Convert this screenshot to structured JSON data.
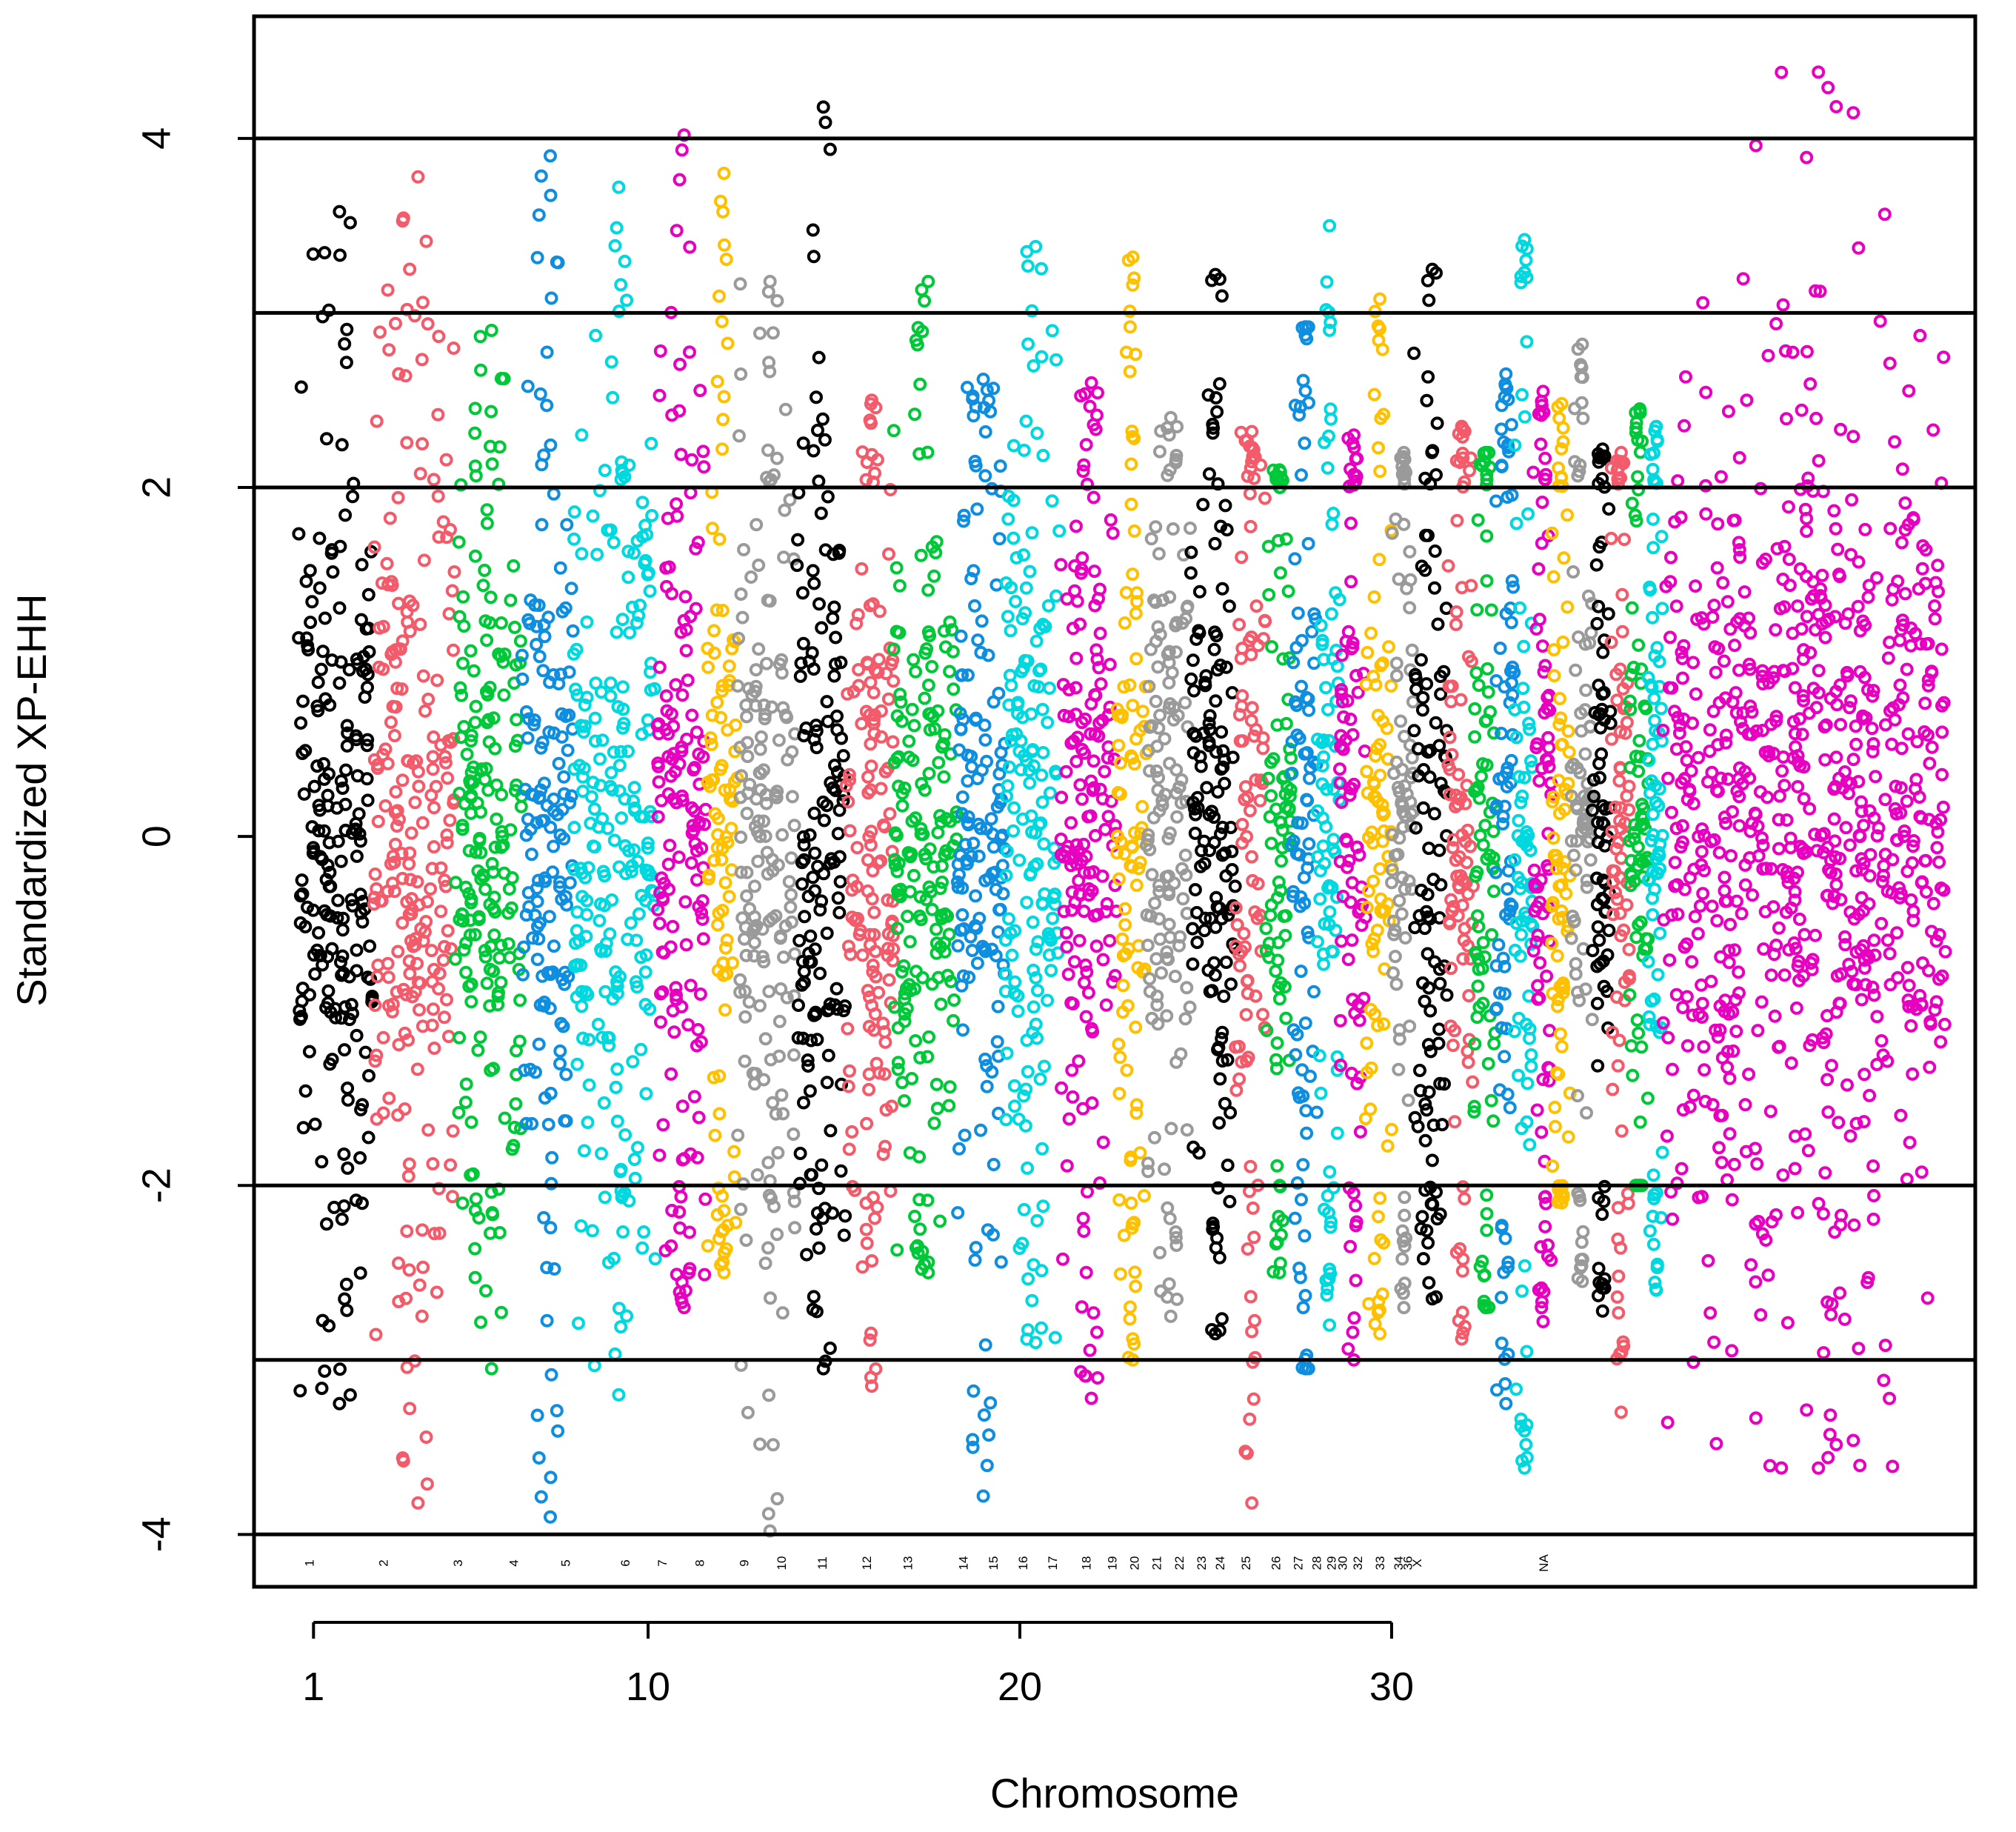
{
  "chart_data": {
    "type": "scatter",
    "title": "",
    "xlabel": "Chromosome",
    "ylabel": "Standardized XP-EHH",
    "ylim": [
      -4.3,
      4.7
    ],
    "xlim": [
      -0.6,
      45.7
    ],
    "grid": false,
    "legend": "none",
    "marker": "open-circle",
    "x_ticks": [
      {
        "value": 1,
        "label": "1"
      },
      {
        "value": 10,
        "label": "10"
      },
      {
        "value": 20,
        "label": "20"
      },
      {
        "value": 30,
        "label": "30"
      }
    ],
    "y_ticks": [
      {
        "value": 4,
        "label": "4"
      },
      {
        "value": 2,
        "label": "2"
      },
      {
        "value": 0,
        "label": "0"
      },
      {
        "value": -2,
        "label": "-2"
      },
      {
        "value": -4,
        "label": "-4"
      }
    ],
    "reference_lines_y": [
      4,
      3,
      2,
      -2,
      -3,
      -4
    ],
    "palette": {
      "black": "#000000",
      "salmon": "#f35a6a",
      "green": "#00c838",
      "blue": "#0f8ee0",
      "cyan": "#00d8e0",
      "magenta": "#e800c0",
      "yellow": "#ffc000",
      "gray": "#9a9a9a"
    },
    "chromosomes": [
      {
        "label": "1",
        "x_start": 0.6,
        "x_end": 2.6,
        "color": "black",
        "ymin": -3.25,
        "ymax": 3.58
      },
      {
        "label": "2",
        "x_start": 2.6,
        "x_end": 4.8,
        "color": "salmon",
        "ymin": -3.82,
        "ymax": 3.78
      },
      {
        "label": "3",
        "x_start": 4.8,
        "x_end": 6.6,
        "color": "green",
        "ymin": -3.05,
        "ymax": 2.9
      },
      {
        "label": "4",
        "x_start": 6.6,
        "x_end": 8.0,
        "color": "blue",
        "ymin": -3.9,
        "ymax": 3.9
      },
      {
        "label": "5",
        "x_start": 8.0,
        "x_end": 10.2,
        "color": "cyan",
        "ymin": -3.2,
        "ymax": 3.72
      },
      {
        "label": "6",
        "x_start": 10.2,
        "x_end": 11.6,
        "color": "magenta",
        "ymin": -2.7,
        "ymax": 4.02
      },
      {
        "label": "7",
        "x_start": 11.6,
        "x_end": 12.4,
        "color": "yellow",
        "ymin": -2.5,
        "ymax": 3.8
      },
      {
        "label": "8",
        "x_start": 12.4,
        "x_end": 14.0,
        "color": "gray",
        "ymin": -3.98,
        "ymax": 3.18
      },
      {
        "label": "9",
        "x_start": 14.0,
        "x_end": 15.3,
        "color": "black",
        "ymin": -3.05,
        "ymax": 4.18
      },
      {
        "label": "10",
        "x_start": 15.3,
        "x_end": 16.6,
        "color": "salmon",
        "ymin": -3.15,
        "ymax": 2.5
      },
      {
        "label": "11",
        "x_start": 16.6,
        "x_end": 18.3,
        "color": "green",
        "ymin": -2.5,
        "ymax": 3.18
      },
      {
        "label": "12",
        "x_start": 18.3,
        "x_end": 19.6,
        "color": "blue",
        "ymin": -3.78,
        "ymax": 2.62
      },
      {
        "label": "13",
        "x_start": 19.6,
        "x_end": 21.1,
        "color": "cyan",
        "ymin": -2.9,
        "ymax": 3.38
      },
      {
        "label": "14",
        "x_start": 21.1,
        "x_end": 22.6,
        "color": "magenta",
        "ymin": -3.22,
        "ymax": 2.6
      },
      {
        "label": "15",
        "x_start": 22.6,
        "x_end": 23.4,
        "color": "yellow",
        "ymin": -3.0,
        "ymax": 3.32
      },
      {
        "label": "16",
        "x_start": 23.4,
        "x_end": 24.6,
        "color": "gray",
        "ymin": -2.75,
        "ymax": 2.4
      },
      {
        "label": "17",
        "x_start": 24.6,
        "x_end": 25.8,
        "color": "black",
        "ymin": -2.85,
        "ymax": 3.22
      },
      {
        "label": "18",
        "x_start": 25.8,
        "x_end": 26.6,
        "color": "salmon",
        "ymin": -3.82,
        "ymax": 2.32
      },
      {
        "label": "19",
        "x_start": 26.6,
        "x_end": 27.3,
        "color": "green",
        "ymin": -2.5,
        "ymax": 2.1
      },
      {
        "label": "20",
        "x_start": 27.3,
        "x_end": 28.0,
        "color": "blue",
        "ymin": -3.05,
        "ymax": 2.92
      },
      {
        "label": "21",
        "x_start": 28.0,
        "x_end": 28.6,
        "color": "cyan",
        "ymin": -2.8,
        "ymax": 3.5
      },
      {
        "label": "22",
        "x_start": 28.6,
        "x_end": 29.3,
        "color": "magenta",
        "ymin": -3.0,
        "ymax": 2.3
      },
      {
        "label": "23",
        "x_start": 29.3,
        "x_end": 30.0,
        "color": "yellow",
        "ymin": -2.85,
        "ymax": 3.08
      },
      {
        "label": "24",
        "x_start": 30.0,
        "x_end": 30.6,
        "color": "gray",
        "ymin": -2.7,
        "ymax": 2.2
      },
      {
        "label": "25",
        "x_start": 30.6,
        "x_end": 31.5,
        "color": "black",
        "ymin": -2.65,
        "ymax": 3.25
      },
      {
        "label": "26",
        "x_start": 31.5,
        "x_end": 32.2,
        "color": "salmon",
        "ymin": -2.88,
        "ymax": 2.35
      },
      {
        "label": "27",
        "x_start": 32.2,
        "x_end": 32.8,
        "color": "green",
        "ymin": -2.7,
        "ymax": 2.2
      },
      {
        "label": "28",
        "x_start": 32.8,
        "x_end": 33.3,
        "color": "blue",
        "ymin": -3.25,
        "ymax": 2.65
      },
      {
        "label": "29",
        "x_start": 33.3,
        "x_end": 33.8,
        "color": "cyan",
        "ymin": -3.62,
        "ymax": 3.42
      },
      {
        "label": "30",
        "x_start": 33.8,
        "x_end": 34.3,
        "color": "magenta",
        "ymin": -2.78,
        "ymax": 2.55
      },
      {
        "label": "32",
        "x_start": 34.3,
        "x_end": 34.8,
        "color": "yellow",
        "ymin": -2.1,
        "ymax": 2.48
      },
      {
        "label": "33",
        "x_start": 34.8,
        "x_end": 35.4,
        "color": "gray",
        "ymin": -2.55,
        "ymax": 2.82
      },
      {
        "label": "34",
        "x_start": 35.4,
        "x_end": 35.9,
        "color": "black",
        "ymin": -2.72,
        "ymax": 2.22
      },
      {
        "label": "36",
        "x_start": 35.9,
        "x_end": 36.4,
        "color": "salmon",
        "ymin": -3.3,
        "ymax": 2.2
      },
      {
        "label": "X",
        "x_start": 36.4,
        "x_end": 36.9,
        "color": "green",
        "ymin": -2.0,
        "ymax": 2.45
      },
      {
        "label": "",
        "x_start": 36.9,
        "x_end": 37.3,
        "color": "cyan",
        "ymin": -2.6,
        "ymax": 2.35
      },
      {
        "label": "NA",
        "x_start": 37.3,
        "x_end": 44.9,
        "color": "magenta",
        "ymin": -3.62,
        "ymax": 4.38
      }
    ],
    "chromosome_label_positions": [
      {
        "label": "1",
        "x": 1.0
      },
      {
        "label": "2",
        "x": 3.0
      },
      {
        "label": "3",
        "x": 5.0
      },
      {
        "label": "4",
        "x": 6.5
      },
      {
        "label": "5",
        "x": 7.9
      },
      {
        "label": "6",
        "x": 9.5
      },
      {
        "label": "7",
        "x": 10.5
      },
      {
        "label": "8",
        "x": 11.5
      },
      {
        "label": "9",
        "x": 12.7
      },
      {
        "label": "10",
        "x": 13.7
      },
      {
        "label": "11",
        "x": 14.8
      },
      {
        "label": "12",
        "x": 16.0
      },
      {
        "label": "13",
        "x": 17.1
      },
      {
        "label": "14",
        "x": 18.6
      },
      {
        "label": "15",
        "x": 19.4
      },
      {
        "label": "16",
        "x": 20.2
      },
      {
        "label": "17",
        "x": 21.0
      },
      {
        "label": "18",
        "x": 21.9
      },
      {
        "label": "19",
        "x": 22.6
      },
      {
        "label": "20",
        "x": 23.2
      },
      {
        "label": "21",
        "x": 23.8
      },
      {
        "label": "22",
        "x": 24.4
      },
      {
        "label": "23",
        "x": 25.0
      },
      {
        "label": "24",
        "x": 25.5
      },
      {
        "label": "25",
        "x": 26.2
      },
      {
        "label": "26",
        "x": 27.0
      },
      {
        "label": "27",
        "x": 27.6
      },
      {
        "label": "28",
        "x": 28.1
      },
      {
        "label": "29",
        "x": 28.5
      },
      {
        "label": "30",
        "x": 28.8
      },
      {
        "label": "32",
        "x": 29.2
      },
      {
        "label": "33",
        "x": 29.8
      },
      {
        "label": "34",
        "x": 30.3
      },
      {
        "label": "36",
        "x": 30.55
      },
      {
        "label": "X",
        "x": 30.8
      },
      {
        "label": "NA",
        "x": 34.2
      }
    ]
  }
}
